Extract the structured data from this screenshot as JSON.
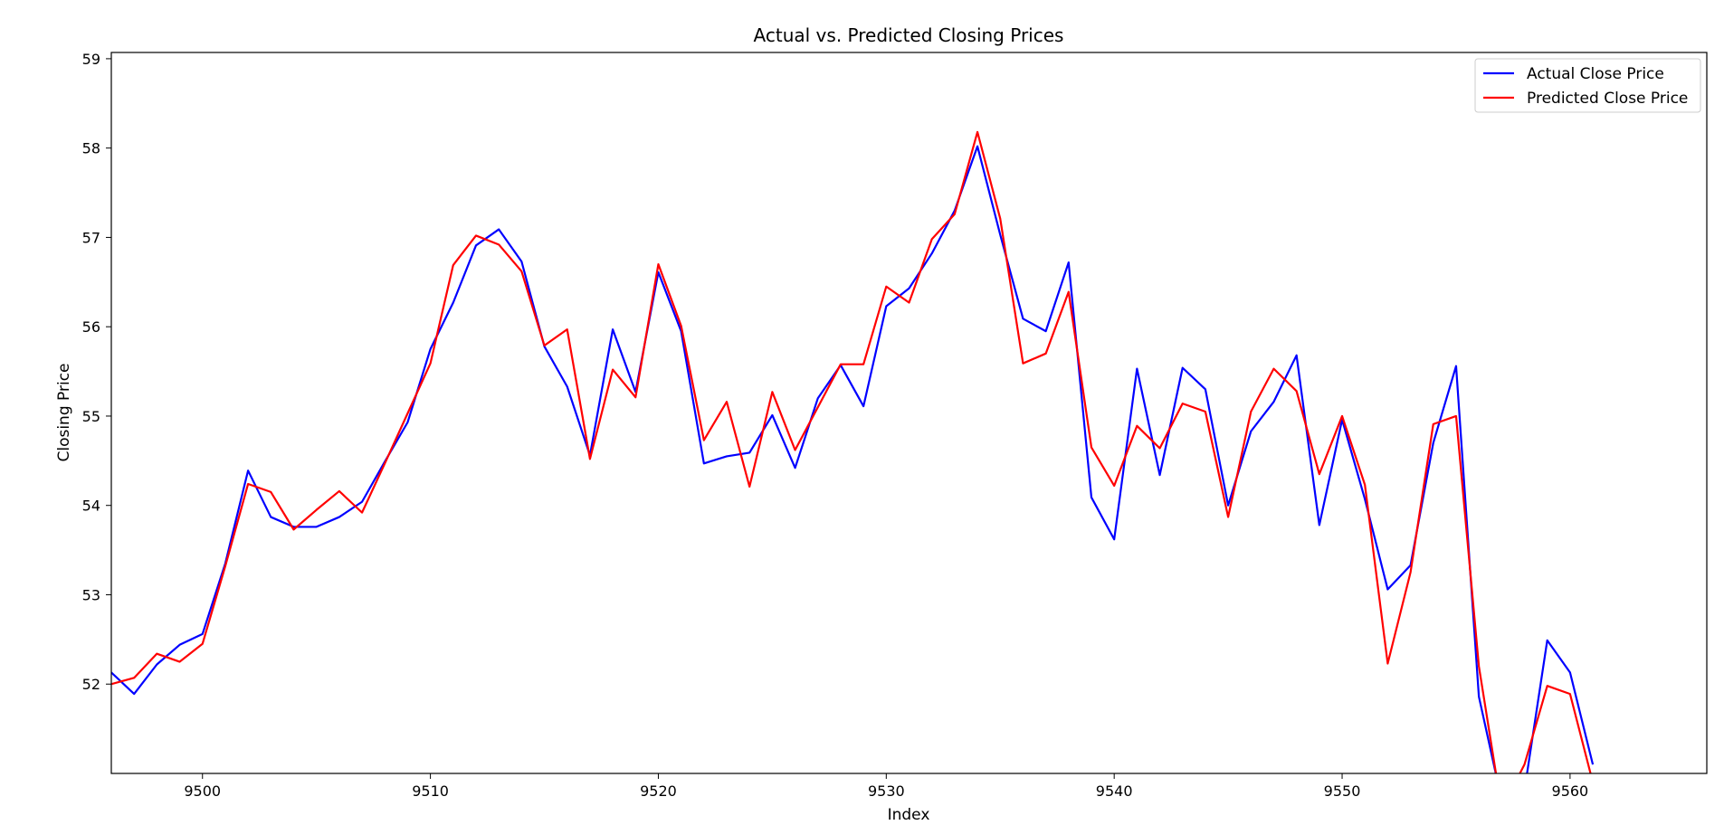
{
  "chart_data": {
    "type": "line",
    "title": "Actual vs. Predicted Closing Prices",
    "xlabel": "Index",
    "ylabel": "Closing Price",
    "xlim": [
      9496,
      9566
    ],
    "ylim": [
      51.0,
      59.07
    ],
    "xticks": [
      9500,
      9510,
      9520,
      9530,
      9540,
      9550,
      9560
    ],
    "yticks": [
      52,
      53,
      54,
      55,
      56,
      57,
      58,
      59
    ],
    "grid": false,
    "legend_position": "top-right",
    "x": [
      9496,
      9497,
      9498,
      9499,
      9500,
      9501,
      9502,
      9503,
      9504,
      9505,
      9506,
      9507,
      9508,
      9509,
      9510,
      9511,
      9512,
      9513,
      9514,
      9515,
      9516,
      9517,
      9518,
      9519,
      9520,
      9521,
      9522,
      9523,
      9524,
      9525,
      9526,
      9527,
      9528,
      9529,
      9530,
      9531,
      9532,
      9533,
      9534,
      9535,
      9536,
      9537,
      9538,
      9539,
      9540,
      9541,
      9542,
      9543,
      9544,
      9545,
      9546,
      9547,
      9548,
      9549,
      9550,
      9551,
      9552,
      9553,
      9554,
      9555,
      9556,
      9557,
      9558,
      9559,
      9560,
      9561
    ],
    "series": [
      {
        "name": "Actual Close Price",
        "color": "#0000ff",
        "values": [
          52.13,
          51.89,
          52.22,
          52.44,
          52.56,
          53.35,
          54.39,
          53.87,
          53.76,
          53.76,
          53.87,
          54.04,
          54.49,
          54.93,
          55.75,
          56.27,
          56.91,
          57.09,
          56.73,
          55.78,
          55.33,
          54.56,
          55.97,
          55.27,
          56.61,
          55.95,
          54.47,
          54.55,
          54.59,
          55.01,
          54.42,
          55.2,
          55.57,
          55.11,
          56.23,
          56.43,
          56.82,
          57.3,
          58.02,
          57.03,
          56.09,
          55.95,
          56.72,
          54.09,
          53.62,
          55.53,
          54.34,
          55.54,
          55.3,
          54.0,
          54.83,
          55.16,
          55.68,
          53.78,
          54.96,
          54.07,
          53.06,
          53.33,
          54.7,
          55.56,
          51.86,
          50.7,
          50.81,
          52.49,
          52.13,
          51.1
        ]
      },
      {
        "name": "Predicted Close Price",
        "color": "#ff0000",
        "values": [
          52.0,
          52.07,
          52.34,
          52.25,
          52.45,
          53.32,
          54.24,
          54.15,
          53.73,
          53.95,
          54.16,
          53.92,
          54.47,
          55.03,
          55.59,
          56.69,
          57.02,
          56.92,
          56.62,
          55.79,
          55.97,
          54.52,
          55.52,
          55.21,
          56.7,
          56.01,
          54.73,
          55.16,
          54.21,
          55.27,
          54.62,
          55.1,
          55.58,
          55.58,
          56.45,
          56.27,
          56.98,
          57.26,
          58.18,
          57.21,
          55.59,
          55.7,
          56.39,
          54.65,
          54.22,
          54.89,
          54.64,
          55.14,
          55.05,
          53.87,
          55.05,
          55.53,
          55.28,
          54.35,
          55.0,
          54.23,
          52.23,
          53.25,
          54.91,
          55.0,
          52.2,
          50.6,
          51.1,
          51.98,
          51.89,
          50.9
        ]
      }
    ]
  }
}
